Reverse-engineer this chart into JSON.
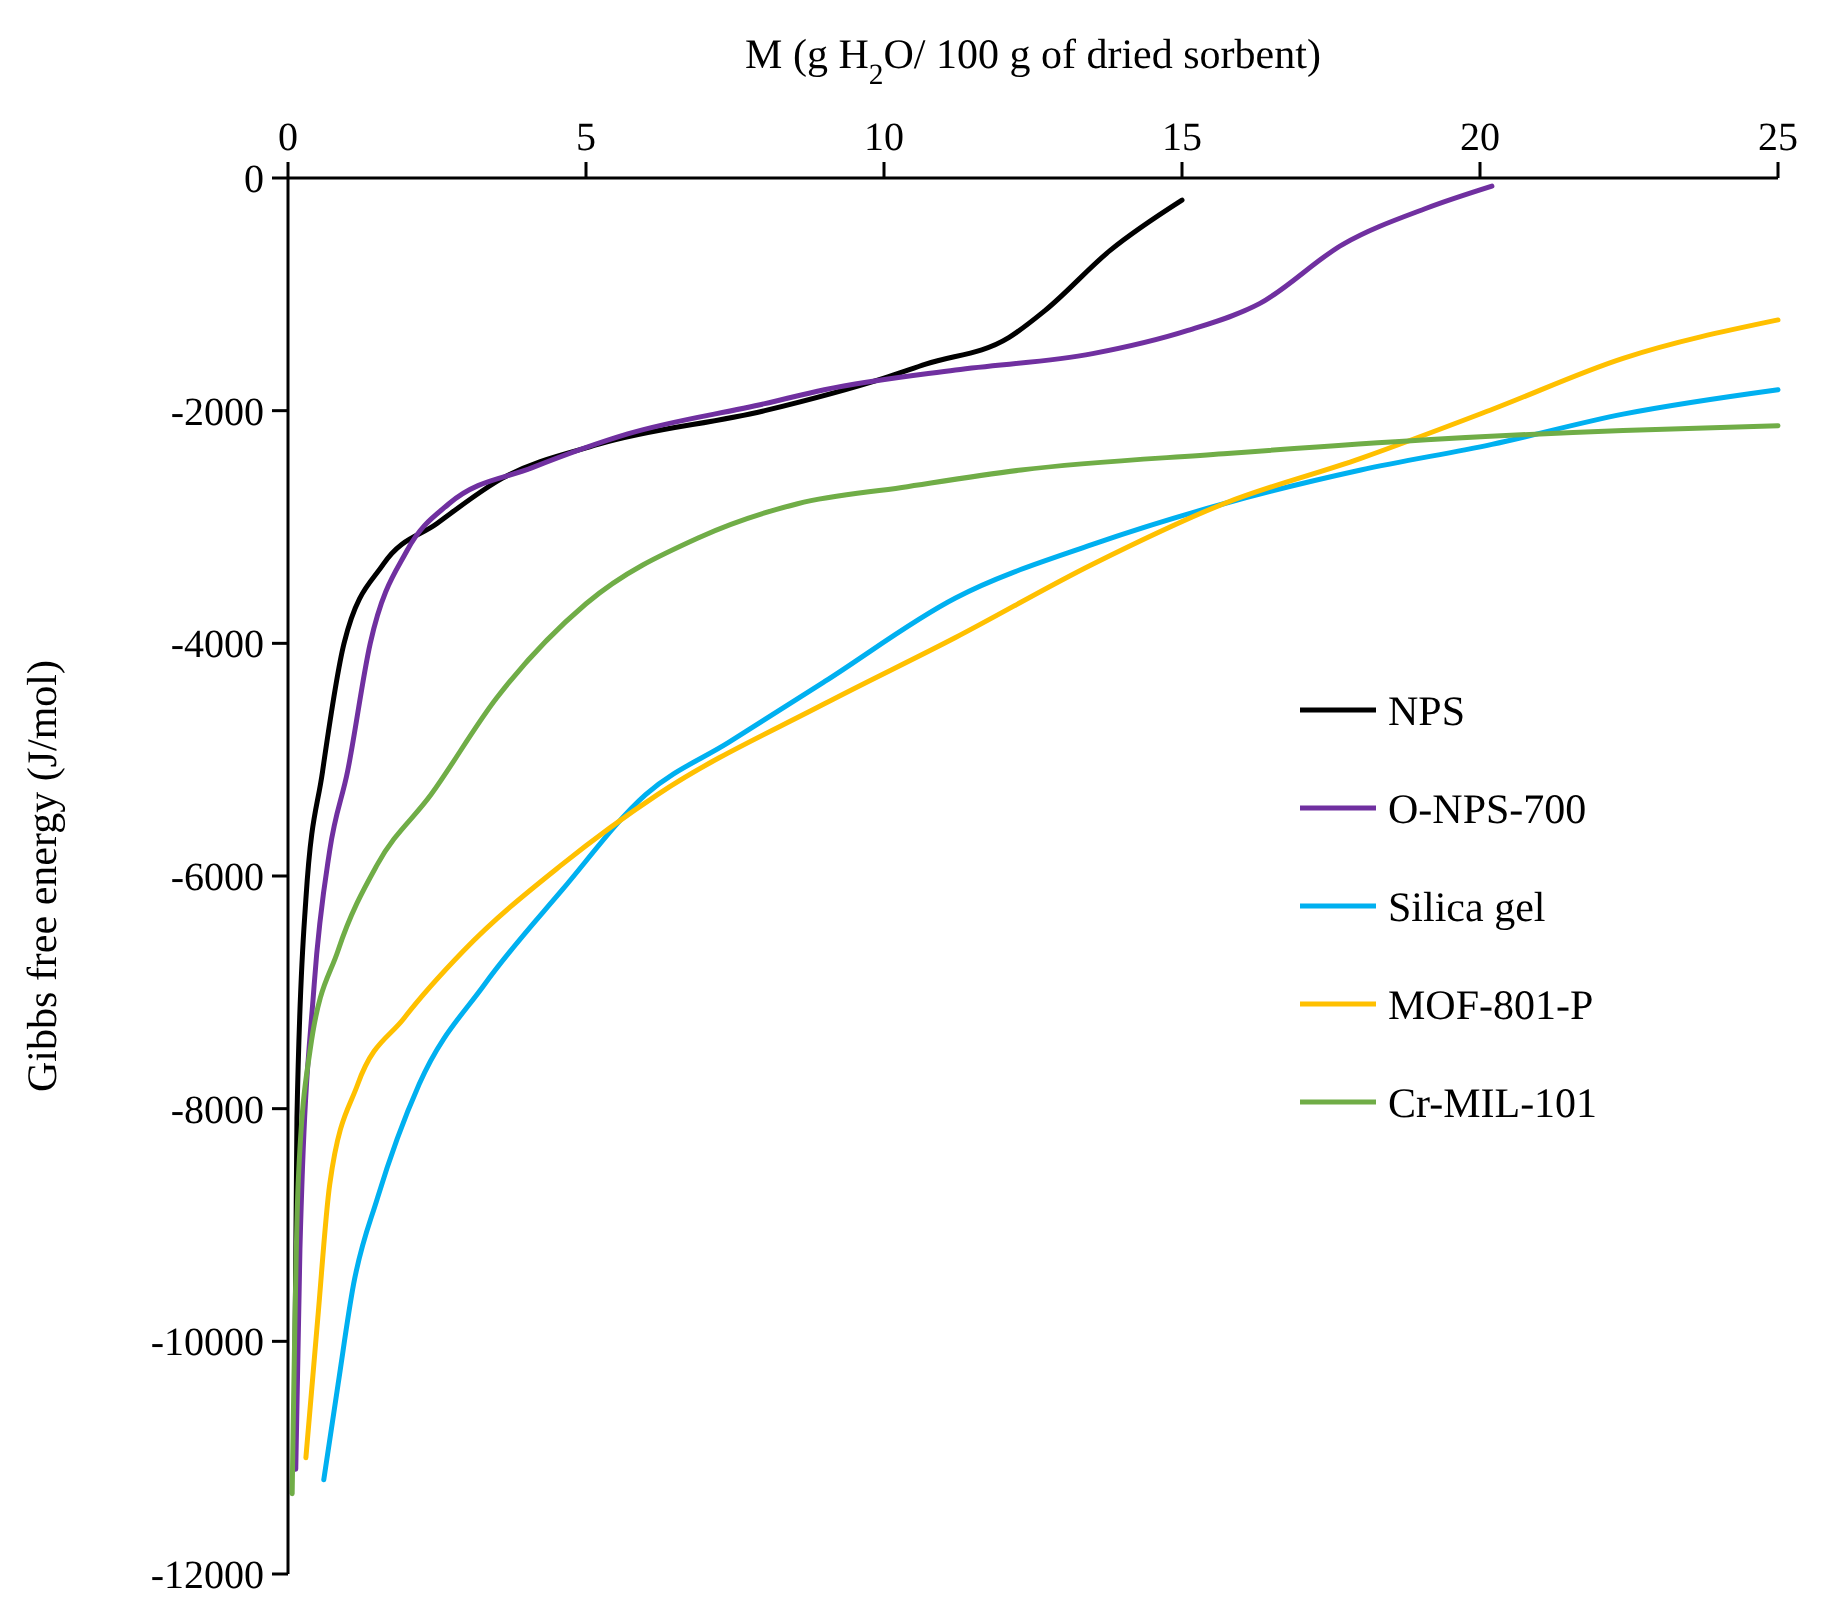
{
  "chart_data": {
    "type": "line",
    "xlabel": "M (g H$_{2}$O/ 100 g of dried sorbent)",
    "ylabel": "Gibbs free energy (J/mol)",
    "xlim": [
      0,
      25
    ],
    "xticks": [
      0,
      5,
      10,
      15,
      20,
      25
    ],
    "ylim": [
      -12000,
      0
    ],
    "yticks": [
      -12000,
      -10000,
      -8000,
      -6000,
      -4000,
      -2000,
      0
    ],
    "grid": false,
    "legend": "right",
    "marker": "none",
    "line_style": "solid",
    "series": [
      {
        "name": "NPS",
        "color": "#000000",
        "x": [
          0.1,
          0.15,
          0.3,
          0.58,
          0.94,
          1.6,
          2.5,
          3.6,
          5.2,
          8.0,
          10.0,
          10.7,
          12.1,
          12.7,
          13.8,
          15.0
        ],
        "values": [
          -11100,
          -8080,
          -6200,
          -5100,
          -4000,
          -3320,
          -2970,
          -2580,
          -2290,
          -2000,
          -1720,
          -1600,
          -1370,
          -1140,
          -620,
          -190
        ]
      },
      {
        "name": "O-NPS-700",
        "color": "#7030a0",
        "x": [
          0.13,
          0.2,
          0.44,
          0.7,
          1.0,
          1.38,
          2.0,
          2.7,
          4.1,
          5.7,
          8.0,
          9.0,
          11.2,
          13.5,
          15.1,
          16.3,
          17.7,
          19.1,
          20.2
        ],
        "values": [
          -11100,
          -9210,
          -6930,
          -5780,
          -5100,
          -4000,
          -3200,
          -2800,
          -2490,
          -2200,
          -1940,
          -1820,
          -1650,
          -1510,
          -1310,
          -1080,
          -570,
          -260,
          -70
        ]
      },
      {
        "name": "Silica gel",
        "color": "#00b0f0",
        "x": [
          0.6,
          0.84,
          1.1,
          1.5,
          2.2,
          3.3,
          4.6,
          6.0,
          7.4,
          9.0,
          11.2,
          13.5,
          15.7,
          18.0,
          20.2,
          22.4,
          25.0
        ],
        "values": [
          -11190,
          -10370,
          -9510,
          -8770,
          -7790,
          -6930,
          -6120,
          -5300,
          -4850,
          -4330,
          -3610,
          -3150,
          -2800,
          -2510,
          -2290,
          -2030,
          -1820
        ]
      },
      {
        "name": "MOF-801-P",
        "color": "#ffc000",
        "x": [
          0.3,
          0.5,
          0.7,
          1.17,
          1.95,
          2.95,
          4.6,
          6.2,
          9.0,
          11.2,
          13.5,
          15.7,
          18.0,
          20.2,
          22.4,
          25.0
        ],
        "values": [
          -11000,
          -9800,
          -8650,
          -7790,
          -7220,
          -6640,
          -5900,
          -5300,
          -4520,
          -3950,
          -3320,
          -2800,
          -2410,
          -1990,
          -1550,
          -1220
        ]
      },
      {
        "name": "Cr-MIL-101",
        "color": "#70ad47",
        "x": [
          0.07,
          0.17,
          0.37,
          0.84,
          1.5,
          2.4,
          3.5,
          5.0,
          6.9,
          8.55,
          10.3,
          12.3,
          15.7,
          19.1,
          22.4,
          25.0
        ],
        "values": [
          -11310,
          -8650,
          -7500,
          -6640,
          -5900,
          -5300,
          -4470,
          -3660,
          -3090,
          -2800,
          -2660,
          -2510,
          -2370,
          -2250,
          -2170,
          -2130
        ]
      }
    ]
  }
}
